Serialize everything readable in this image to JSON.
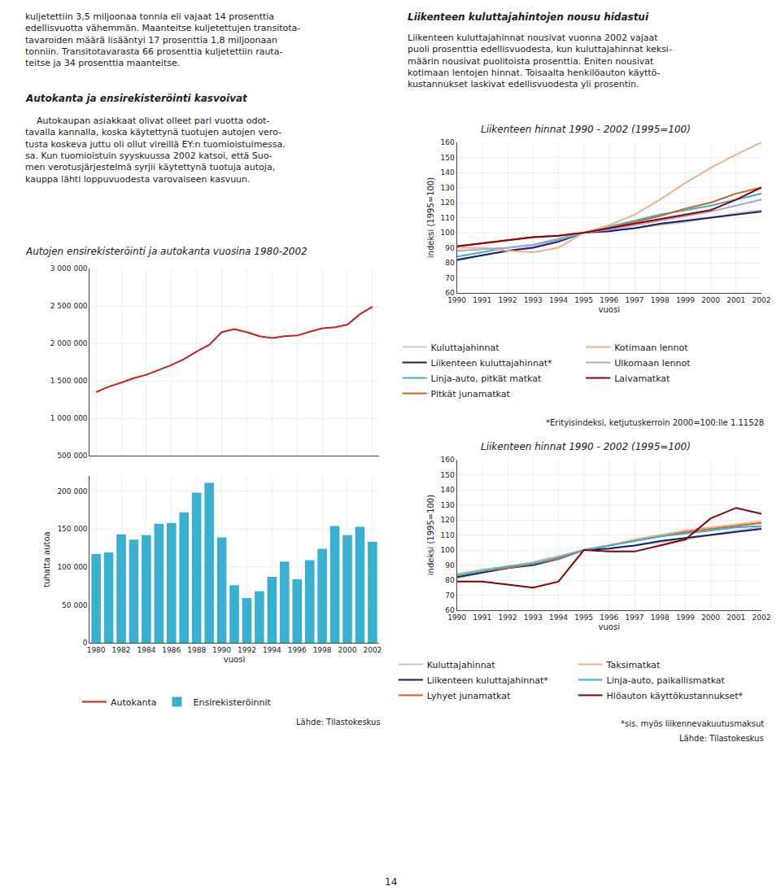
{
  "chart_data": [
    {
      "type": "line",
      "title": "Autojen ensirekisteröinti ja autokanta vuosina 1980-2002",
      "xlabel": "vuosi",
      "y2label": "tuhatta autoa",
      "x": [
        1980,
        1981,
        1982,
        1983,
        1984,
        1985,
        1986,
        1987,
        1988,
        1989,
        1990,
        1991,
        1992,
        1993,
        1994,
        1995,
        1996,
        1997,
        1998,
        1999,
        2000,
        2001,
        2002
      ],
      "series": [
        {
          "name": "Autokanta",
          "type": "line",
          "color": "#c82020",
          "values": [
            1350000,
            1420000,
            1475000,
            1535000,
            1580000,
            1645000,
            1710000,
            1790000,
            1890000,
            1980000,
            2150000,
            2190000,
            2150000,
            2095000,
            2070000,
            2095000,
            2105000,
            2155000,
            2200000,
            2215000,
            2250000,
            2390000,
            2490000
          ]
        },
        {
          "name": "Ensirekisteröinnit",
          "type": "bar",
          "axis": "y2",
          "color": "#3ab0d0",
          "values": [
            117000,
            119000,
            143000,
            136000,
            142000,
            157000,
            158000,
            172000,
            198000,
            211000,
            139000,
            76000,
            59000,
            68000,
            87000,
            107000,
            84000,
            109000,
            124000,
            154000,
            142000,
            153000,
            133000
          ]
        }
      ],
      "xlim": [
        1979.5,
        2002.5
      ],
      "xticks": [
        1980,
        1982,
        1984,
        1986,
        1988,
        1990,
        1992,
        1994,
        1996,
        1998,
        2000,
        2002
      ],
      "ylim": [
        500000,
        3000000
      ],
      "yticks": [
        {
          "value": 500000,
          "label": "500 000"
        },
        {
          "value": 1000000,
          "label": "1 000 000"
        },
        {
          "value": 1500000,
          "label": "1 500 000"
        },
        {
          "value": 2000000,
          "label": "2 000 000"
        },
        {
          "value": 2500000,
          "label": "2 500 000"
        },
        {
          "value": 3000000,
          "label": "3 000 000"
        }
      ],
      "y2lim": [
        0,
        220000
      ],
      "y2ticks": [
        0,
        {
          "value": 50000,
          "label": "50 000"
        },
        {
          "value": 100000,
          "label": "100 000"
        },
        {
          "value": 150000,
          "label": "150 000"
        },
        {
          "value": 200000,
          "label": "200 000"
        }
      ],
      "grid": true,
      "legend": "bottom",
      "annotations": [
        "kuljetettiin 3,5 miljoonaa tonnia eli vajaat 14 prosenttia\nedellisvuotta vähemmän. Maanteitse kuljetettujen transitota-\ntavaroiden määrä lisääntyi 17 prosenttia 1,8 miljoonaan\ntonniin. Transitotavarasta 66 prosenttia kuljetettiin rauta-\nteitse ja 34 prosenttia maanteitse.",
        "Autokanta ja ensirekisteröinti kasvoivat",
        "    Autokaupan asiakkaat olivat olleet pari vuotta odot-\ntavalla kannalla, koska käytettynä tuotujen autojen vero-\ntusta koskeva juttu oli ollut vireillä EY:n tuomioistuimessa.\nsa. Kun tuomioistuin syyskuussa 2002 katsoi, että Suo-\nmen verotusjärjestelmä syrjii käytettynä tuotuja autoja,\nkauppa lähti loppuvuodesta varovaiseen kasvuun.",
        "Lähde: Tilastokeskus"
      ]
    },
    {
      "type": "line",
      "title": "Liikenteen hinnat 1990 - 2002 (1995=100)",
      "xlabel": "vuosi",
      "ylabel": "indeksi (1995=100)",
      "x": [
        1990,
        1991,
        1992,
        1993,
        1994,
        1995,
        1996,
        1997,
        1998,
        1999,
        2000,
        2001,
        2002
      ],
      "series": [
        {
          "name": "Kuluttajahinnat",
          "color": "#c8c8c8",
          "values": [
            81,
            85,
            88,
            91,
            95,
            100,
            101,
            103,
            105,
            107,
            110,
            113,
            115
          ]
        },
        {
          "name": "Liikenteen kuluttajahinnat*",
          "color": "#1a1a6e",
          "values": [
            82,
            85,
            88,
            90,
            94,
            100,
            101,
            103,
            106,
            108,
            110,
            112,
            114
          ]
        },
        {
          "name": "Linja-auto, pitkät matkat",
          "color": "#3ab0d0",
          "values": [
            84,
            87,
            90,
            92,
            95,
            100,
            104,
            108,
            112,
            115,
            118,
            122,
            126
          ]
        },
        {
          "name": "Pitkät junamatkat",
          "color": "#d06020",
          "values": [
            91,
            93,
            95,
            97,
            98,
            100,
            103,
            107,
            111,
            116,
            120,
            126,
            130
          ]
        },
        {
          "name": "Kotimaan lennot",
          "color": "#f0b090",
          "values": [
            90,
            90,
            88,
            87,
            90,
            100,
            105,
            112,
            122,
            133,
            143,
            152,
            160
          ]
        },
        {
          "name": "Ulkomaan lennot",
          "color": "#a8a8cc",
          "values": [
            88,
            89,
            90,
            92,
            96,
            100,
            102,
            105,
            108,
            111,
            114,
            118,
            122
          ]
        },
        {
          "name": "Laivamatkat",
          "color": "#8b0000",
          "values": [
            91,
            93,
            95,
            97,
            98,
            100,
            103,
            106,
            109,
            112,
            115,
            122,
            130
          ]
        }
      ],
      "xlim": [
        1990,
        2002
      ],
      "xticks": [
        1990,
        1991,
        1992,
        1993,
        1994,
        1995,
        1996,
        1997,
        1998,
        1999,
        2000,
        2001,
        2002
      ],
      "ylim": [
        60,
        160
      ],
      "yticks": [
        60,
        70,
        80,
        90,
        100,
        110,
        120,
        130,
        140,
        150,
        160
      ],
      "grid": true,
      "legend": "bottom",
      "annotations": [
        "Liikenteen kuluttajahintojen nousu hidastui",
        "Liikenteen kuluttajahinnat nousivat vuonna 2002 vajaat\npuoli prosenttia edellisvuodesta, kun kuluttajahinnat keksi-\nmäärin nousivat puolitoista prosenttia. Eniten nousivat\nkotimaan lentojen hinnat. Toisaalta henkilöauton käyttö-\nkustannukset laskivat edellisvuodesta yli prosentin.",
        "*Erityisindeksi, ketjutuskerroin 2000=100:lle 1.11528"
      ]
    },
    {
      "type": "line",
      "title": "Liikenteen hinnat 1990 - 2002 (1995=100)",
      "xlabel": "vuosi",
      "ylabel": "indeksi (1995=100)",
      "x": [
        1990,
        1991,
        1992,
        1993,
        1994,
        1995,
        1996,
        1997,
        1998,
        1999,
        2000,
        2001,
        2002
      ],
      "series": [
        {
          "name": "Kuluttajahinnat",
          "color": "#c8c8c8",
          "values": [
            81,
            85,
            88,
            91,
            95,
            100,
            101,
            103,
            105,
            107,
            110,
            113,
            115
          ]
        },
        {
          "name": "Liikenteen kuluttajahinnat*",
          "color": "#1a1a6e",
          "values": [
            82,
            85,
            88,
            90,
            94,
            100,
            101,
            103,
            106,
            108,
            110,
            112,
            114
          ]
        },
        {
          "name": "Lyhyet junamatkat",
          "color": "#d06020",
          "values": [
            84,
            86,
            88,
            91,
            94,
            100,
            103,
            106,
            109,
            112,
            114,
            116,
            118
          ]
        },
        {
          "name": "Taksimatkat",
          "color": "#f0b090",
          "values": [
            84,
            87,
            89,
            92,
            96,
            100,
            103,
            107,
            110,
            113,
            115,
            117,
            119
          ]
        },
        {
          "name": "Linja-auto, paikallismatkat",
          "color": "#3ab0d0",
          "values": [
            83,
            86,
            89,
            91,
            95,
            100,
            103,
            106,
            109,
            111,
            113,
            115,
            116
          ]
        },
        {
          "name": "Hlöauton käyttökustannukset*",
          "color": "#8b0000",
          "values": [
            79,
            79,
            77,
            75,
            79,
            100,
            99,
            99,
            103,
            107,
            121,
            128,
            124
          ]
        }
      ],
      "xlim": [
        1990,
        2002
      ],
      "xticks": [
        1990,
        1991,
        1992,
        1993,
        1994,
        1995,
        1996,
        1997,
        1998,
        1999,
        2000,
        2001,
        2002
      ],
      "ylim": [
        60,
        160
      ],
      "yticks": [
        60,
        70,
        80,
        90,
        100,
        110,
        120,
        130,
        140,
        150,
        160
      ],
      "grid": true,
      "legend": "bottom",
      "annotations": [
        "*sis. myös liikennevakuutusmaksut",
        "Lähde: Tilastokeskus",
        "14"
      ]
    }
  ]
}
